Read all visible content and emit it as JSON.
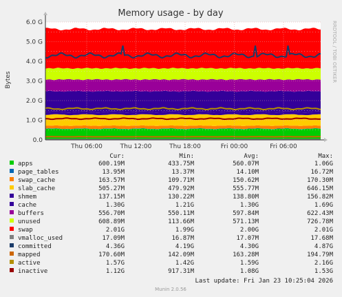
{
  "chart_data": {
    "type": "area",
    "title": "Memory usage - by day",
    "ylabel": "Bytes",
    "side_label": "RRDTOOL / TOBI OETIKER",
    "ylim": [
      0,
      6
    ],
    "y_unit": "G",
    "y_ticks": [
      "0.0",
      "1.0 G",
      "2.0 G",
      "3.0 G",
      "4.0 G",
      "5.0 G",
      "6.0 G"
    ],
    "x_ticks": [
      "Thu 06:00",
      "Thu 12:00",
      "Thu 18:00",
      "Fri 00:00",
      "Fri 06:00"
    ],
    "grid": true,
    "legend_header": {
      "cur": "Cur:",
      "min": "Min:",
      "avg": "Avg:",
      "max": "Max:"
    },
    "series": [
      {
        "name": "apps",
        "color": "#00cc00",
        "cur": "600.19M",
        "min": "433.75M",
        "avg": "560.07M",
        "max": "1.06G",
        "level": 0.56
      },
      {
        "name": "page_tables",
        "color": "#0066b3",
        "cur": "13.95M",
        "min": "13.37M",
        "avg": "14.10M",
        "max": "16.72M",
        "level": 0.014
      },
      {
        "name": "swap_cache",
        "color": "#ff8000",
        "cur": "163.57M",
        "min": "109.71M",
        "avg": "150.62M",
        "max": "170.30M",
        "level": 0.15
      },
      {
        "name": "slab_cache",
        "color": "#ffcc00",
        "cur": "505.27M",
        "min": "479.92M",
        "avg": "555.77M",
        "max": "646.15M",
        "level": 0.56
      },
      {
        "name": "shmem",
        "color": "#330099",
        "cur": "137.15M",
        "min": "130.22M",
        "avg": "138.80M",
        "max": "156.82M",
        "level": 0.14
      },
      {
        "name": "cache",
        "color": "#330099",
        "cur": "1.30G",
        "min": "1.21G",
        "avg": "1.30G",
        "max": "1.69G",
        "level": 1.05
      },
      {
        "name": "buffers",
        "color": "#990099",
        "cur": "556.70M",
        "min": "550.11M",
        "avg": "597.84M",
        "max": "622.43M",
        "level": 0.6
      },
      {
        "name": "unused",
        "color": "#ccff00",
        "cur": "608.89M",
        "min": "113.66M",
        "avg": "571.13M",
        "max": "726.78M",
        "level": 0.57
      },
      {
        "name": "swap",
        "color": "#ff0000",
        "cur": "2.01G",
        "min": "1.99G",
        "avg": "2.00G",
        "max": "2.01G",
        "level": 2.0
      },
      {
        "name": "vmalloc_used",
        "color": "#808080",
        "cur": "17.09M",
        "min": "16.87M",
        "avg": "17.07M",
        "max": "17.68M",
        "level": 0.017
      },
      {
        "name": "committed",
        "color": "#1a3b69",
        "cur": "4.36G",
        "min": "4.19G",
        "avg": "4.30G",
        "max": "4.87G",
        "level": 4.3
      },
      {
        "name": "mapped",
        "color": "#cc6600",
        "cur": "170.60M",
        "min": "142.09M",
        "avg": "163.28M",
        "max": "194.79M",
        "level": 0.16
      },
      {
        "name": "active",
        "color": "#b38f00",
        "cur": "1.57G",
        "min": "1.42G",
        "avg": "1.59G",
        "max": "2.16G",
        "level": 1.59
      },
      {
        "name": "inactive",
        "color": "#990000",
        "cur": "1.12G",
        "min": "917.31M",
        "avg": "1.08G",
        "max": "1.53G",
        "level": 1.08
      }
    ],
    "last_update": "Last update:  Fri Jan 23 10:25:04 2026",
    "footer": "Munin 2.0.56"
  },
  "colors": {
    "background": "#f0f0f0",
    "plot_background": "#ffffff",
    "grid_major": "#e8a0a0",
    "grid_minor": "#dddddd"
  }
}
